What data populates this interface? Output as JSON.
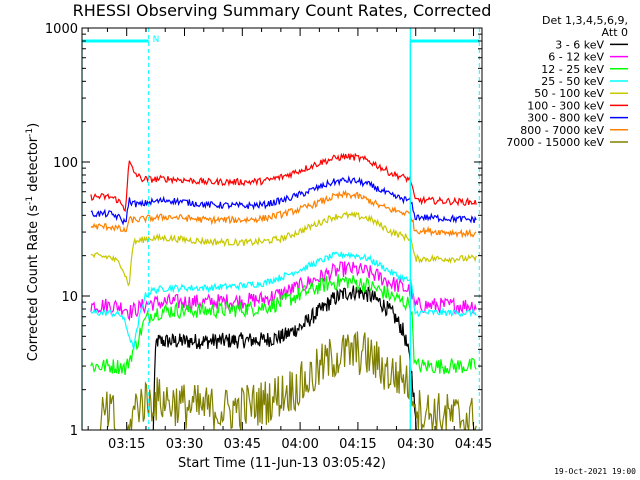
{
  "chart_data": {
    "type": "line",
    "title": "RHESSI Observing Summary Count Rates, Corrected",
    "xlabel": "Start Time (11-Jun-13 03:05:42)",
    "ylabel": "Corrected Count Rate (s",
    "ylabel_sup1": "-1",
    "ylabel_mid": " detector",
    "ylabel_sup2": "-1",
    "ylabel_end": ")",
    "yscale": "log",
    "ylim": [
      1,
      1000
    ],
    "y_ticks": [
      {
        "value": 1,
        "label": "1"
      },
      {
        "value": 10,
        "label": "10"
      },
      {
        "value": 100,
        "label": "100"
      },
      {
        "value": 1000,
        "label": "1000"
      }
    ],
    "xlim": [
      -2.3,
      101.5
    ],
    "x_units": "minutes after 03:05:42",
    "x_ticks": [
      {
        "value": 9.3,
        "label": "03:15"
      },
      {
        "value": 24.3,
        "label": "03:30"
      },
      {
        "value": 39.3,
        "label": "03:45"
      },
      {
        "value": 54.3,
        "label": "04:00"
      },
      {
        "value": 69.3,
        "label": "04:15"
      },
      {
        "value": 84.3,
        "label": "04:30"
      },
      {
        "value": 99.3,
        "label": "04:45"
      }
    ],
    "legend_header": [
      "Det 1,3,4,5,6,9,",
      "Att 0"
    ],
    "legend_position": "right",
    "series": [
      {
        "name": "3 - 6 keV",
        "color": "#000000",
        "points": [
          [
            16,
            0
          ],
          [
            17,
            4.6
          ],
          [
            30,
            4.6
          ],
          [
            45,
            4.7
          ],
          [
            50,
            5
          ],
          [
            55,
            6
          ],
          [
            60,
            8
          ],
          [
            63,
            9.5
          ],
          [
            66,
            10.5
          ],
          [
            69,
            10.8
          ],
          [
            72,
            10.2
          ],
          [
            75,
            9
          ],
          [
            78,
            7.5
          ],
          [
            81,
            5.5
          ],
          [
            83,
            3
          ],
          [
            85,
            0
          ]
        ]
      },
      {
        "name": "6 - 12 keV",
        "color": "#ff00ff",
        "points": [
          [
            0,
            8.5
          ],
          [
            5,
            8.5
          ],
          [
            9,
            8.2
          ],
          [
            10,
            7.6
          ],
          [
            12,
            8
          ],
          [
            15,
            8.8
          ],
          [
            20,
            9
          ],
          [
            30,
            9
          ],
          [
            40,
            9.2
          ],
          [
            45,
            9.5
          ],
          [
            50,
            10.5
          ],
          [
            55,
            12
          ],
          [
            60,
            14
          ],
          [
            63,
            15.2
          ],
          [
            66,
            16
          ],
          [
            69,
            15.7
          ],
          [
            72,
            15
          ],
          [
            75,
            13.8
          ],
          [
            78,
            12.5
          ],
          [
            81,
            11.5
          ],
          [
            83,
            11
          ],
          [
            84,
            8.5
          ],
          [
            90,
            8.5
          ],
          [
            100,
            8.5
          ]
        ]
      },
      {
        "name": "12 - 25 keV",
        "color": "#00ff00",
        "points": [
          [
            0,
            3
          ],
          [
            8,
            3
          ],
          [
            9,
            2.8
          ],
          [
            12,
            4.5
          ],
          [
            14,
            6.5
          ],
          [
            16,
            7.5
          ],
          [
            20,
            7.8
          ],
          [
            30,
            7.8
          ],
          [
            40,
            8
          ],
          [
            45,
            8.3
          ],
          [
            50,
            9
          ],
          [
            55,
            10.5
          ],
          [
            60,
            12
          ],
          [
            63,
            12.6
          ],
          [
            66,
            13
          ],
          [
            69,
            12.6
          ],
          [
            72,
            12
          ],
          [
            75,
            11
          ],
          [
            78,
            10
          ],
          [
            81,
            9
          ],
          [
            83,
            8.7
          ],
          [
            84,
            3
          ],
          [
            100,
            3
          ]
        ]
      },
      {
        "name": "25 - 50 keV",
        "color": "#00ffff",
        "points": [
          [
            0,
            7.5
          ],
          [
            5,
            7.5
          ],
          [
            8,
            7.2
          ],
          [
            10,
            5
          ],
          [
            11,
            4
          ],
          [
            12,
            5.5
          ],
          [
            14,
            10
          ],
          [
            16,
            11
          ],
          [
            20,
            11.5
          ],
          [
            30,
            11.5
          ],
          [
            40,
            12
          ],
          [
            45,
            12.5
          ],
          [
            50,
            14
          ],
          [
            55,
            16
          ],
          [
            60,
            18.5
          ],
          [
            63,
            20
          ],
          [
            66,
            20.5
          ],
          [
            69,
            20
          ],
          [
            72,
            19
          ],
          [
            75,
            17
          ],
          [
            78,
            15
          ],
          [
            81,
            13.5
          ],
          [
            83,
            13
          ],
          [
            84,
            7.5
          ],
          [
            100,
            7.5
          ]
        ]
      },
      {
        "name": "50 - 100 keV",
        "color": "#c8c800",
        "points": [
          [
            0,
            20
          ],
          [
            5,
            19.5
          ],
          [
            8,
            17
          ],
          [
            9,
            14
          ],
          [
            10,
            12
          ],
          [
            11,
            25
          ],
          [
            13,
            26
          ],
          [
            15,
            27
          ],
          [
            20,
            27
          ],
          [
            30,
            25.5
          ],
          [
            40,
            25
          ],
          [
            45,
            25.5
          ],
          [
            50,
            27
          ],
          [
            55,
            31
          ],
          [
            60,
            36
          ],
          [
            63,
            39
          ],
          [
            66,
            40
          ],
          [
            69,
            39.5
          ],
          [
            72,
            38
          ],
          [
            75,
            34
          ],
          [
            78,
            30
          ],
          [
            81,
            28
          ],
          [
            83,
            27
          ],
          [
            84,
            19
          ],
          [
            100,
            19
          ]
        ]
      },
      {
        "name": "100 - 300 keV",
        "color": "#ff0000",
        "points": [
          [
            0,
            55
          ],
          [
            5,
            55
          ],
          [
            7,
            52
          ],
          [
            8,
            48
          ],
          [
            9,
            44
          ],
          [
            10,
            100
          ],
          [
            11,
            85
          ],
          [
            13,
            75
          ],
          [
            15,
            74
          ],
          [
            20,
            75
          ],
          [
            30,
            71
          ],
          [
            40,
            71
          ],
          [
            45,
            72
          ],
          [
            50,
            78
          ],
          [
            55,
            88
          ],
          [
            60,
            100
          ],
          [
            63,
            106
          ],
          [
            66,
            110
          ],
          [
            69,
            108
          ],
          [
            72,
            102
          ],
          [
            75,
            92
          ],
          [
            78,
            82
          ],
          [
            81,
            77
          ],
          [
            83,
            74
          ],
          [
            84,
            52
          ],
          [
            100,
            50
          ]
        ]
      },
      {
        "name": "300 - 800 keV",
        "color": "#0000ff",
        "points": [
          [
            0,
            41
          ],
          [
            5,
            41
          ],
          [
            7,
            39
          ],
          [
            8,
            37
          ],
          [
            9,
            35
          ],
          [
            10,
            52
          ],
          [
            11,
            49
          ],
          [
            13,
            48
          ],
          [
            15,
            50
          ],
          [
            20,
            52
          ],
          [
            30,
            48
          ],
          [
            40,
            47
          ],
          [
            45,
            48
          ],
          [
            50,
            52
          ],
          [
            55,
            58
          ],
          [
            60,
            66
          ],
          [
            63,
            71
          ],
          [
            66,
            73
          ],
          [
            69,
            72
          ],
          [
            72,
            68
          ],
          [
            75,
            62
          ],
          [
            78,
            56
          ],
          [
            81,
            53
          ],
          [
            83,
            51
          ],
          [
            84,
            39
          ],
          [
            100,
            37
          ]
        ]
      },
      {
        "name": "800 - 7000 keV",
        "color": "#ff8000",
        "points": [
          [
            0,
            33
          ],
          [
            5,
            33
          ],
          [
            7,
            32
          ],
          [
            8,
            31
          ],
          [
            9,
            30
          ],
          [
            10,
            37
          ],
          [
            12,
            37
          ],
          [
            15,
            38
          ],
          [
            20,
            39
          ],
          [
            30,
            37
          ],
          [
            40,
            37
          ],
          [
            45,
            38
          ],
          [
            50,
            41
          ],
          [
            55,
            45
          ],
          [
            60,
            51
          ],
          [
            63,
            55
          ],
          [
            66,
            57
          ],
          [
            69,
            56
          ],
          [
            72,
            52
          ],
          [
            75,
            47
          ],
          [
            78,
            44
          ],
          [
            81,
            42
          ],
          [
            83,
            41
          ],
          [
            84,
            31
          ],
          [
            100,
            29
          ]
        ]
      },
      {
        "name": "7000 - 15000 keV",
        "color": "#808000",
        "points": [
          [
            0,
            0
          ],
          [
            2,
            0
          ],
          [
            3,
            1.3
          ],
          [
            6,
            1.3
          ],
          [
            7,
            0
          ],
          [
            12,
            1.6
          ],
          [
            18,
            1.7
          ],
          [
            25,
            1.5
          ],
          [
            35,
            1.4
          ],
          [
            45,
            1.6
          ],
          [
            52,
            2
          ],
          [
            55,
            2.2
          ],
          [
            58,
            2.6
          ],
          [
            60,
            3
          ],
          [
            63,
            3.5
          ],
          [
            66,
            3.7
          ],
          [
            69,
            3.8
          ],
          [
            72,
            3.6
          ],
          [
            75,
            3
          ],
          [
            78,
            2.6
          ],
          [
            81,
            2.5
          ],
          [
            83,
            2.2
          ],
          [
            85,
            1.4
          ],
          [
            90,
            1.3
          ],
          [
            100,
            1.2
          ]
        ]
      }
    ],
    "markers": [
      {
        "label": "N",
        "color": "#00ffff",
        "start": 15.0,
        "end": 100.8
      }
    ],
    "side_boxes": [
      {
        "from": -2.3,
        "to": 15.0,
        "level": 800
      },
      {
        "from": 82.9,
        "to": 100.8,
        "level": 800
      }
    ],
    "cyan_verticals": [
      82.9
    ]
  },
  "footer_stamp": "19-Oct-2021 19:00"
}
